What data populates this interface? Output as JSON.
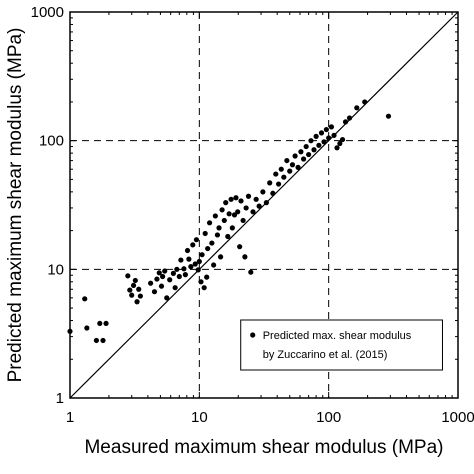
{
  "chart_data": {
    "type": "scatter",
    "title": "",
    "xlabel": "Measured maximum shear modulus (MPa)",
    "ylabel": "Predicted maximum shear modulus (MPa)",
    "xscale": "log",
    "yscale": "log",
    "xlim": [
      1,
      1000
    ],
    "ylim": [
      1,
      1000
    ],
    "x_ticks": [
      "1",
      "10",
      "100",
      "1000"
    ],
    "y_ticks": [
      "1",
      "10",
      "100",
      "1000"
    ],
    "grid": "dashed major gridlines at 10 and 100",
    "reference_line": "1:1 line",
    "legend": {
      "position": "bottom-right",
      "entries": [
        "Predicted max. shear modulus",
        "by Zuccarino et al. (2015)"
      ]
    },
    "series": [
      {
        "name": "Predicted max. shear modulus by Zuccarino et al. (2015)",
        "marker": "filled circle",
        "color": "#000000",
        "points": [
          [
            1.0,
            3.3
          ],
          [
            1.3,
            5.9
          ],
          [
            1.35,
            3.5
          ],
          [
            1.6,
            2.8
          ],
          [
            1.7,
            3.8
          ],
          [
            1.8,
            2.8
          ],
          [
            1.9,
            3.8
          ],
          [
            2.8,
            8.9
          ],
          [
            2.9,
            6.9
          ],
          [
            3.0,
            6.3
          ],
          [
            3.1,
            7.5
          ],
          [
            3.2,
            8.2
          ],
          [
            3.3,
            5.6
          ],
          [
            3.4,
            7.0
          ],
          [
            3.5,
            6.2
          ],
          [
            4.2,
            7.8
          ],
          [
            4.5,
            6.7
          ],
          [
            4.7,
            8.4
          ],
          [
            4.9,
            9.4
          ],
          [
            5.1,
            7.4
          ],
          [
            5.2,
            8.8
          ],
          [
            5.4,
            9.7
          ],
          [
            5.6,
            6.0
          ],
          [
            5.9,
            8.3
          ],
          [
            6.3,
            9.3
          ],
          [
            6.5,
            7.2
          ],
          [
            6.7,
            10.0
          ],
          [
            7.0,
            8.8
          ],
          [
            7.2,
            11.8
          ],
          [
            7.6,
            10.1
          ],
          [
            7.8,
            9.1
          ],
          [
            8.1,
            14.0
          ],
          [
            8.3,
            12.0
          ],
          [
            8.6,
            10.5
          ],
          [
            8.9,
            15.5
          ],
          [
            9.3,
            11.0
          ],
          [
            9.5,
            17.0
          ],
          [
            9.8,
            9.9
          ],
          [
            10.0,
            11.5
          ],
          [
            10.3,
            8.0
          ],
          [
            10.5,
            13.0
          ],
          [
            10.9,
            7.2
          ],
          [
            11.1,
            19.0
          ],
          [
            11.4,
            8.7
          ],
          [
            11.6,
            14.5
          ],
          [
            12.0,
            23.0
          ],
          [
            12.5,
            16.0
          ],
          [
            12.9,
            10.8
          ],
          [
            13.3,
            26.0
          ],
          [
            13.8,
            18.5
          ],
          [
            14.2,
            21.0
          ],
          [
            14.6,
            12.5
          ],
          [
            15.0,
            29.0
          ],
          [
            15.6,
            24.0
          ],
          [
            16.0,
            33.0
          ],
          [
            16.6,
            18.0
          ],
          [
            17.0,
            27.0
          ],
          [
            17.6,
            35.0
          ],
          [
            18.0,
            21.0
          ],
          [
            18.7,
            26.5
          ],
          [
            19.2,
            36.0
          ],
          [
            19.8,
            28.0
          ],
          [
            20.5,
            15.0
          ],
          [
            21.0,
            34.0
          ],
          [
            21.8,
            24.0
          ],
          [
            22.5,
            12.5
          ],
          [
            23.0,
            30.0
          ],
          [
            24.0,
            37.0
          ],
          [
            25.0,
            9.5
          ],
          [
            26.0,
            28.0
          ],
          [
            27.5,
            35.0
          ],
          [
            29.0,
            31.0
          ],
          [
            31.0,
            40.0
          ],
          [
            33.0,
            33.0
          ],
          [
            35.0,
            47.0
          ],
          [
            37.0,
            39.0
          ],
          [
            39.0,
            55.0
          ],
          [
            41.0,
            46.0
          ],
          [
            43.0,
            60.0
          ],
          [
            45.0,
            52.0
          ],
          [
            47.5,
            70.0
          ],
          [
            50.0,
            58.0
          ],
          [
            52.5,
            65.0
          ],
          [
            55.0,
            76.0
          ],
          [
            58.0,
            62.0
          ],
          [
            61.0,
            82.0
          ],
          [
            64.0,
            72.0
          ],
          [
            67.0,
            90.0
          ],
          [
            70.0,
            78.0
          ],
          [
            73.0,
            100.0
          ],
          [
            77.0,
            85.0
          ],
          [
            80.0,
            108.0
          ],
          [
            84.0,
            92.0
          ],
          [
            88.0,
            115.0
          ],
          [
            92.0,
            98.0
          ],
          [
            96.0,
            122.0
          ],
          [
            100.0,
            105.0
          ],
          [
            105.0,
            128.0
          ],
          [
            110.0,
            110.0
          ],
          [
            116.0,
            88.0
          ],
          [
            122.0,
            95.0
          ],
          [
            128.0,
            102.0
          ],
          [
            135.0,
            140.0
          ],
          [
            145.0,
            150.0
          ],
          [
            165.0,
            180.0
          ],
          [
            190.0,
            200.0
          ],
          [
            290.0,
            155.0
          ]
        ]
      }
    ]
  }
}
